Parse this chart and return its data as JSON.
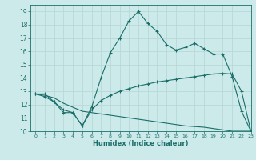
{
  "xlabel": "Humidex (Indice chaleur)",
  "xlim": [
    -0.5,
    23
  ],
  "ylim": [
    10,
    19.5
  ],
  "xticks": [
    0,
    1,
    2,
    3,
    4,
    5,
    6,
    7,
    8,
    9,
    10,
    11,
    12,
    13,
    14,
    15,
    16,
    17,
    18,
    19,
    20,
    21,
    22,
    23
  ],
  "yticks": [
    10,
    11,
    12,
    13,
    14,
    15,
    16,
    17,
    18,
    19
  ],
  "bg_color": "#cdeaea",
  "line_color": "#1a6e6a",
  "grid_color": "#b8d8d8",
  "line1_x": [
    0,
    1,
    2,
    3,
    4,
    5,
    6,
    7,
    8,
    9,
    10,
    11,
    12,
    13,
    14,
    15,
    16,
    17,
    18,
    19,
    20,
    21,
    22,
    23
  ],
  "line1_y": [
    12.8,
    12.8,
    12.2,
    11.4,
    11.4,
    10.4,
    11.8,
    14.0,
    15.9,
    17.0,
    18.3,
    19.0,
    18.1,
    17.5,
    16.5,
    16.1,
    16.3,
    16.6,
    16.2,
    15.8,
    15.8,
    14.1,
    11.5,
    10.0
  ],
  "line2_x": [
    0,
    1,
    2,
    3,
    4,
    5,
    6,
    7,
    8,
    9,
    10,
    11,
    12,
    13,
    14,
    15,
    16,
    17,
    18,
    19,
    20,
    21,
    22,
    23
  ],
  "line2_y": [
    12.8,
    12.6,
    12.2,
    11.6,
    11.4,
    10.4,
    11.6,
    12.3,
    12.7,
    13.0,
    13.2,
    13.4,
    13.55,
    13.7,
    13.8,
    13.9,
    14.0,
    14.1,
    14.2,
    14.3,
    14.35,
    14.3,
    13.0,
    10.0
  ],
  "line3_x": [
    0,
    1,
    2,
    3,
    4,
    5,
    6,
    7,
    8,
    9,
    10,
    11,
    12,
    13,
    14,
    15,
    16,
    17,
    18,
    19,
    20,
    21,
    22,
    23
  ],
  "line3_y": [
    12.8,
    12.7,
    12.5,
    12.1,
    11.8,
    11.5,
    11.4,
    11.3,
    11.2,
    11.1,
    11.0,
    10.9,
    10.8,
    10.7,
    10.6,
    10.5,
    10.4,
    10.35,
    10.3,
    10.2,
    10.1,
    10.0,
    10.0,
    10.0
  ]
}
